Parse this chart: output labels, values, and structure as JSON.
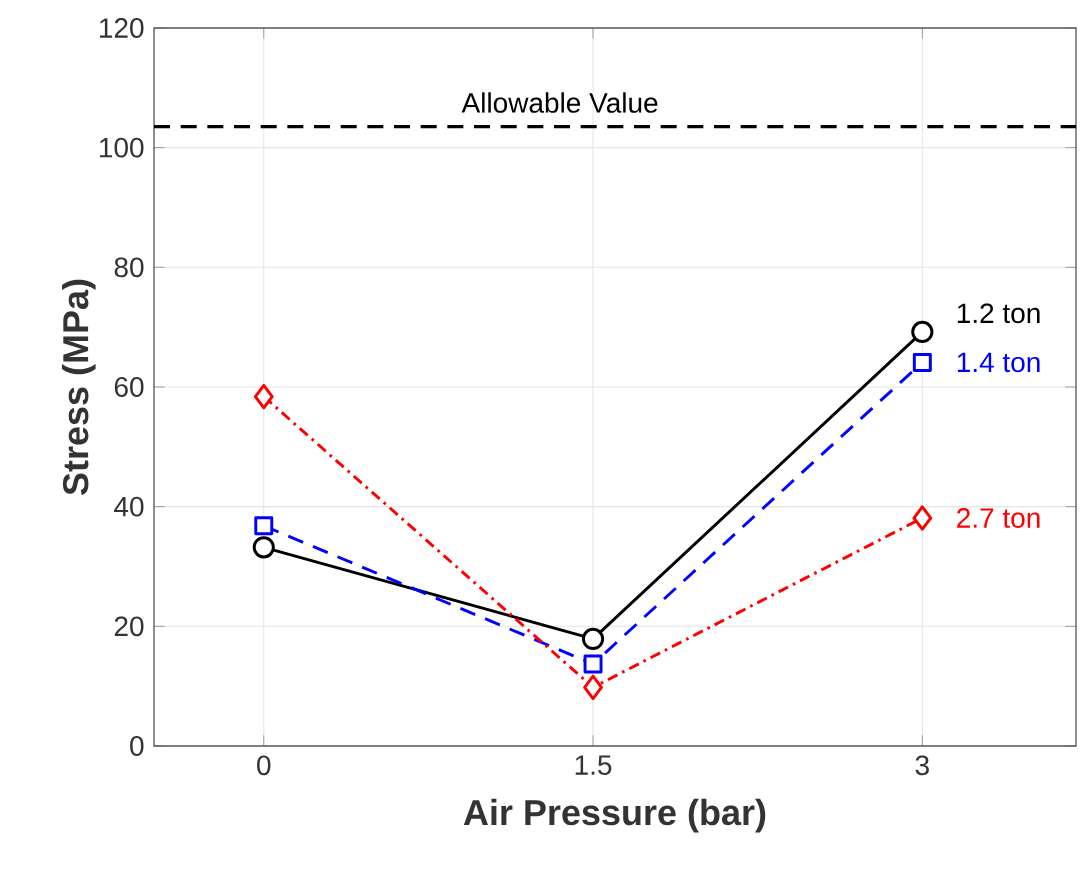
{
  "chart_data": {
    "type": "line",
    "xlabel": "Air Pressure (bar)",
    "ylabel": "Stress (MPa)",
    "x": [
      0,
      1.5,
      3
    ],
    "series": [
      {
        "name": "1.2 ton",
        "color": "#000000",
        "values": [
          33.2,
          17.9,
          69.2
        ],
        "marker": "circle",
        "line_style": "solid"
      },
      {
        "name": "1.4 ton",
        "color": "#0000ff",
        "values": [
          36.8,
          13.7,
          64.1
        ],
        "marker": "square",
        "line_style": "dashed"
      },
      {
        "name": "2.7 ton",
        "color": "#ff0000",
        "values": [
          58.4,
          9.8,
          38.1
        ],
        "marker": "diamond",
        "line_style": "dashdot"
      }
    ],
    "xlim": [
      -0.5,
      3.7
    ],
    "ylim": [
      0,
      120
    ],
    "xticks": [
      0,
      {
        "value": 1.5,
        "label": "1.5"
      },
      3
    ],
    "yticks": [
      0,
      20,
      40,
      60,
      80,
      100,
      120
    ],
    "ref_lines": [
      {
        "axis": "y",
        "value": 103.5,
        "label": "Allowable Value",
        "color": "#000000",
        "line_style": "dashed"
      }
    ],
    "grid": true
  }
}
